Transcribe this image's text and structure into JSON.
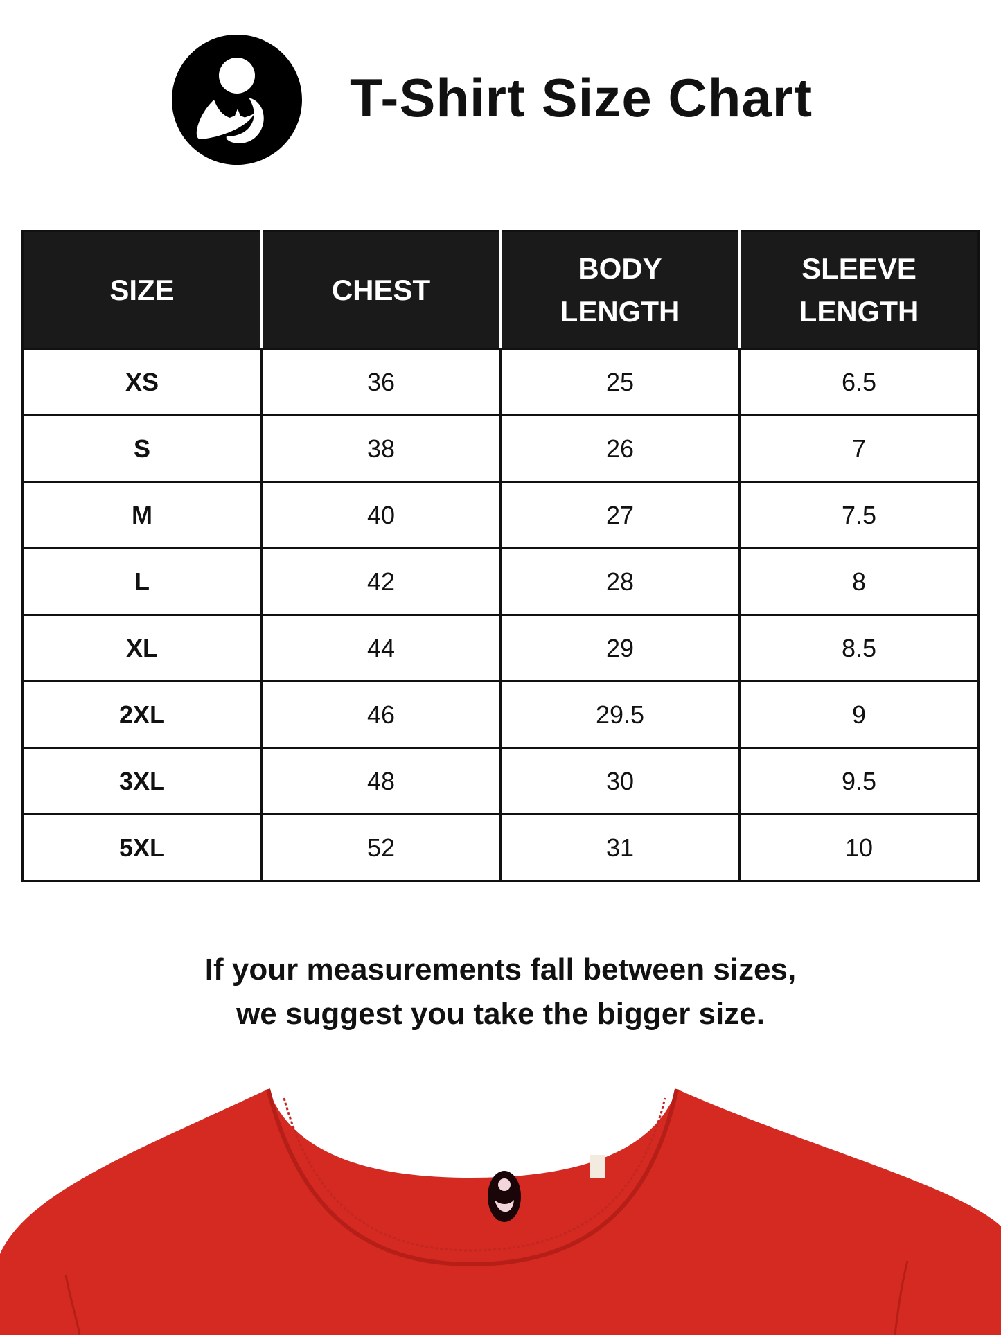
{
  "title": "T-Shirt Size Chart",
  "brand_logo": "mother-and-child-icon",
  "table": {
    "headers": [
      [
        "SIZE"
      ],
      [
        "CHEST"
      ],
      [
        "BODY",
        "LENGTH"
      ],
      [
        "SLEEVE",
        "LENGTH"
      ]
    ],
    "rows": [
      [
        "XS",
        "36",
        "25",
        "6.5"
      ],
      [
        "S",
        "38",
        "26",
        "7"
      ],
      [
        "M",
        "40",
        "27",
        "7.5"
      ],
      [
        "L",
        "42",
        "28",
        "8"
      ],
      [
        "XL",
        "44",
        "29",
        "8.5"
      ],
      [
        "2XL",
        "46",
        "29.5",
        "9"
      ],
      [
        "3XL",
        "48",
        "30",
        "9.5"
      ],
      [
        "5XL",
        "52",
        "31",
        "10"
      ]
    ]
  },
  "note": [
    "If your measurements fall between sizes,",
    "we suggest you take the bigger size."
  ],
  "colors": {
    "shirt": "#d42a22",
    "header_bg": "#1a1a1a"
  }
}
